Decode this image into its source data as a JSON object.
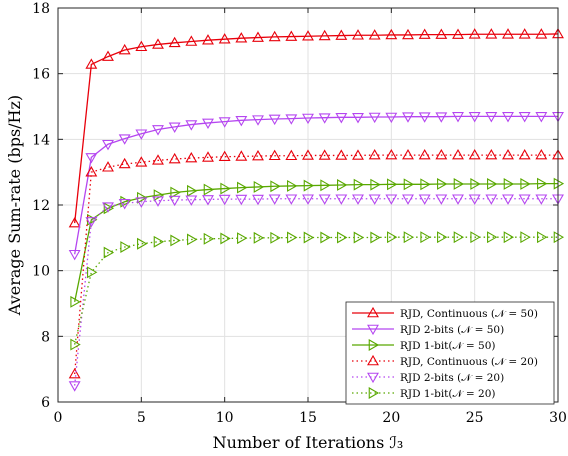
{
  "chart_data": {
    "type": "line",
    "xlabel": "Number of Iterations ℐ₃",
    "ylabel": "Average Sum-rate (bps/Hz)",
    "xlim": [
      0,
      30
    ],
    "ylim": [
      6,
      18
    ],
    "xticks": [
      0,
      5,
      10,
      15,
      20,
      25,
      30
    ],
    "yticks": [
      6,
      8,
      10,
      12,
      14,
      16,
      18
    ],
    "grid": true,
    "legend_position": "bottom-right",
    "x": [
      1,
      2,
      3,
      4,
      5,
      6,
      7,
      8,
      9,
      10,
      11,
      12,
      13,
      14,
      15,
      16,
      17,
      18,
      19,
      20,
      21,
      22,
      23,
      24,
      25,
      26,
      27,
      28,
      29,
      30
    ],
    "series": [
      {
        "name": "RJD, Continuous (𝒩 = 50)",
        "color": "#e8000b",
        "line": "solid",
        "marker": "triangle-up",
        "values": [
          11.45,
          16.28,
          16.52,
          16.72,
          16.82,
          16.89,
          16.94,
          16.98,
          17.02,
          17.05,
          17.08,
          17.1,
          17.12,
          17.13,
          17.14,
          17.15,
          17.16,
          17.17,
          17.17,
          17.18,
          17.18,
          17.19,
          17.19,
          17.19,
          17.2,
          17.2,
          17.2,
          17.2,
          17.2,
          17.21
        ]
      },
      {
        "name": "RJD 2-bits (𝒩 = 50)",
        "color": "#b546f0",
        "line": "solid",
        "marker": "triangle-down",
        "values": [
          10.5,
          13.45,
          13.85,
          14.02,
          14.17,
          14.3,
          14.38,
          14.45,
          14.5,
          14.54,
          14.58,
          14.6,
          14.62,
          14.63,
          14.65,
          14.66,
          14.67,
          14.67,
          14.68,
          14.68,
          14.69,
          14.69,
          14.69,
          14.7,
          14.7,
          14.7,
          14.7,
          14.7,
          14.7,
          14.7
        ]
      },
      {
        "name": "RJD 1-bit(𝒩 = 50)",
        "color": "#59a800",
        "line": "solid",
        "marker": "triangle-right",
        "values": [
          9.05,
          11.55,
          11.9,
          12.1,
          12.22,
          12.3,
          12.38,
          12.43,
          12.47,
          12.5,
          12.53,
          12.55,
          12.57,
          12.58,
          12.59,
          12.6,
          12.61,
          12.62,
          12.62,
          12.63,
          12.63,
          12.63,
          12.64,
          12.64,
          12.64,
          12.64,
          12.64,
          12.64,
          12.65,
          12.65
        ]
      },
      {
        "name": "RJD, Continuous (𝒩 = 20)",
        "color": "#e8000b",
        "line": "dotted",
        "marker": "triangle-up",
        "values": [
          6.85,
          13.0,
          13.15,
          13.25,
          13.3,
          13.36,
          13.4,
          13.43,
          13.45,
          13.47,
          13.48,
          13.49,
          13.5,
          13.5,
          13.51,
          13.51,
          13.51,
          13.51,
          13.52,
          13.52,
          13.52,
          13.52,
          13.52,
          13.52,
          13.52,
          13.52,
          13.52,
          13.52,
          13.52,
          13.52
        ]
      },
      {
        "name": "RJD 2-bits (𝒩 = 20)",
        "color": "#b546f0",
        "line": "dotted",
        "marker": "triangle-down",
        "values": [
          6.5,
          11.5,
          11.95,
          12.05,
          12.1,
          12.13,
          12.15,
          12.16,
          12.17,
          12.18,
          12.18,
          12.18,
          12.19,
          12.19,
          12.19,
          12.19,
          12.19,
          12.19,
          12.19,
          12.19,
          12.19,
          12.19,
          12.19,
          12.19,
          12.19,
          12.19,
          12.19,
          12.19,
          12.19,
          12.19
        ]
      },
      {
        "name": "RJD 1-bit(𝒩 = 20)",
        "color": "#59a800",
        "line": "dotted",
        "marker": "triangle-right",
        "values": [
          7.75,
          9.95,
          10.55,
          10.72,
          10.82,
          10.88,
          10.92,
          10.95,
          10.97,
          10.98,
          10.99,
          11.0,
          11.0,
          11.01,
          11.01,
          11.01,
          11.01,
          11.01,
          11.01,
          11.02,
          11.02,
          11.02,
          11.02,
          11.02,
          11.02,
          11.02,
          11.02,
          11.02,
          11.02,
          11.02
        ]
      }
    ]
  }
}
